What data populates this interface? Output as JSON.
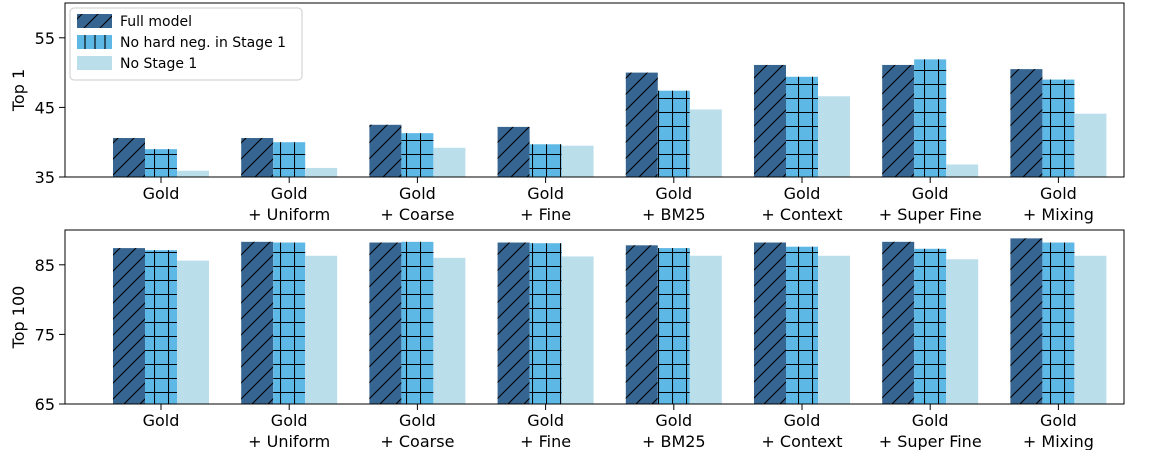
{
  "colors": {
    "full_model": "#376591",
    "no_hard_neg": "#5db8e6",
    "no_stage1": "#bbdeeb"
  },
  "legend": {
    "placement": "upper-left",
    "entries": [
      "Full model",
      "No hard neg. in Stage 1",
      "No Stage 1"
    ]
  },
  "chart_data": [
    {
      "type": "bar",
      "ylabel": "Top 1",
      "ylim": [
        35,
        60
      ],
      "yticks": [
        "35",
        "45",
        "55"
      ],
      "categories": [
        [
          "Gold"
        ],
        [
          "Gold",
          "+ Uniform"
        ],
        [
          "Gold",
          "+ Coarse"
        ],
        [
          "Gold",
          "+ Fine"
        ],
        [
          "Gold",
          "+ BM25"
        ],
        [
          "Gold",
          "+ Context"
        ],
        [
          "Gold",
          "+ Super Fine"
        ],
        [
          "Gold",
          "+ Mixing"
        ]
      ],
      "series": [
        {
          "name": "Full model",
          "values": [
            40.6,
            40.6,
            42.5,
            42.2,
            50.0,
            51.1,
            51.1,
            50.5
          ]
        },
        {
          "name": "No hard neg. in Stage 1",
          "values": [
            39.0,
            40.0,
            41.3,
            39.7,
            47.4,
            49.4,
            51.9,
            49.0
          ]
        },
        {
          "name": "No Stage 1",
          "values": [
            35.9,
            36.3,
            39.2,
            39.5,
            44.7,
            46.6,
            36.8,
            44.1
          ]
        }
      ]
    },
    {
      "type": "bar",
      "ylabel": "Top 100",
      "ylim": [
        65,
        90
      ],
      "yticks": [
        "65",
        "75",
        "85"
      ],
      "categories": [
        [
          "Gold"
        ],
        [
          "Gold",
          "+ Uniform"
        ],
        [
          "Gold",
          "+ Coarse"
        ],
        [
          "Gold",
          "+ Fine"
        ],
        [
          "Gold",
          "+ BM25"
        ],
        [
          "Gold",
          "+ Context"
        ],
        [
          "Gold",
          "+ Super Fine"
        ],
        [
          "Gold",
          "+ Mixing"
        ]
      ],
      "series": [
        {
          "name": "Full model",
          "values": [
            87.4,
            88.3,
            88.2,
            88.2,
            87.8,
            88.2,
            88.3,
            88.8
          ]
        },
        {
          "name": "No hard neg. in Stage 1",
          "values": [
            87.1,
            88.2,
            88.3,
            88.1,
            87.4,
            87.6,
            87.3,
            88.2
          ]
        },
        {
          "name": "No Stage 1",
          "values": [
            85.6,
            86.3,
            86.0,
            86.2,
            86.3,
            86.3,
            85.8,
            86.3
          ]
        }
      ]
    }
  ]
}
